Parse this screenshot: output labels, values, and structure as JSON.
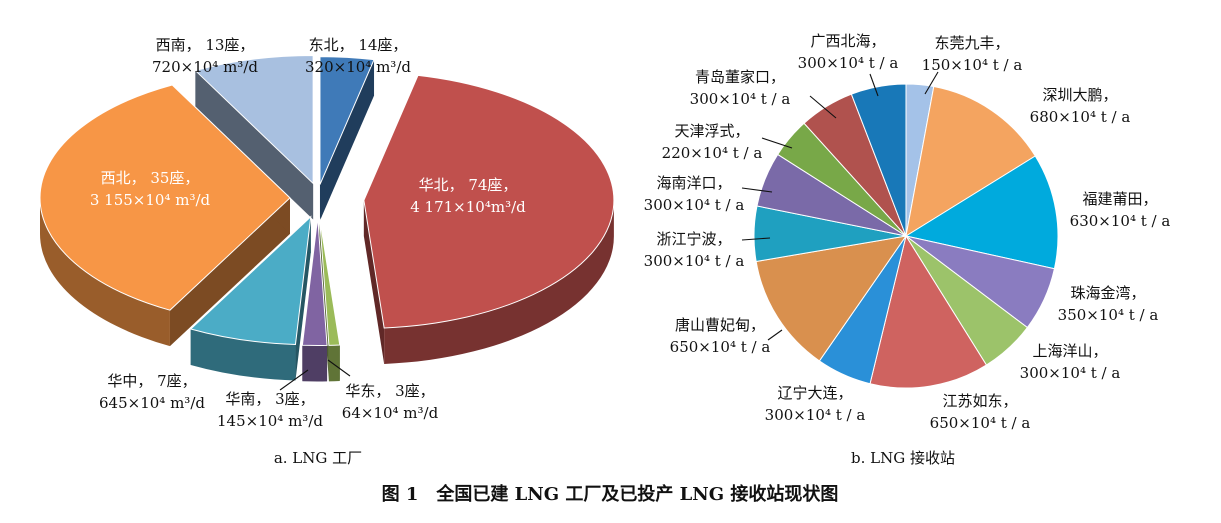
{
  "figure": {
    "caption": "图 1　全国已建 LNG 工厂及已投产 LNG 接收站现状图",
    "sub_a": "a. LNG 工厂",
    "sub_b": "b. LNG 接收站"
  },
  "chart_data": [
    {
      "type": "pie",
      "subtitle": "a. LNG 工厂",
      "slices": [
        {
          "region": "东北",
          "plants": 14,
          "label_1": "东北，  14座，",
          "label_2": "320×10⁴ m³/d",
          "capacity": 320,
          "color": "#3f7ab8"
        },
        {
          "region": "华北",
          "plants": 74,
          "label_1": "华北， 74座，",
          "label_2": "4 171×10⁴m³/d",
          "capacity": 4171,
          "color": "#c0504d"
        },
        {
          "region": "华东",
          "plants": 3,
          "label_1": "华东，  3座，",
          "label_2": "64×10⁴ m³/d",
          "capacity": 64,
          "color": "#9bbb59"
        },
        {
          "region": "华南",
          "plants": 3,
          "label_1": "华南，  3座，",
          "label_2": "145×10⁴ m³/d",
          "capacity": 145,
          "color": "#8064a2"
        },
        {
          "region": "华中",
          "plants": 7,
          "label_1": "华中，  7座，",
          "label_2": "645×10⁴ m³/d",
          "capacity": 645,
          "color": "#4bacc6"
        },
        {
          "region": "西北",
          "plants": 35,
          "label_1": "西北，  35座，",
          "label_2": "3 155×10⁴ m³/d",
          "capacity": 3155,
          "color": "#f79646"
        },
        {
          "region": "西南",
          "plants": 13,
          "label_1": "西南，  13座，",
          "label_2": "720×10⁴ m³/d",
          "capacity": 720,
          "color": "#a8c0e0"
        }
      ]
    },
    {
      "type": "pie",
      "subtitle": "b. LNG 接收站",
      "slices": [
        {
          "name": "东莞九丰",
          "label_1": "东莞九丰，",
          "label_2": "150×10⁴ t / a",
          "capacity": 150,
          "color": "#a4c2e8"
        },
        {
          "name": "深圳大鹏",
          "label_1": "深圳大鹏，",
          "label_2": "680×10⁴ t / a",
          "capacity": 680,
          "color": "#f4a460"
        },
        {
          "name": "福建莆田",
          "label_1": "福建莆田，",
          "label_2": "630×10⁴ t / a",
          "capacity": 630,
          "color": "#00aadd"
        },
        {
          "name": "珠海金湾",
          "label_1": "珠海金湾，",
          "label_2": "350×10⁴ t / a",
          "capacity": 350,
          "color": "#8a7cc0"
        },
        {
          "name": "上海洋山",
          "label_1": "上海洋山，",
          "label_2": "300×10⁴ t / a",
          "capacity": 300,
          "color": "#9cc36a"
        },
        {
          "name": "江苏如东",
          "label_1": "江苏如东，",
          "label_2": "650×10⁴ t / a",
          "capacity": 650,
          "color": "#cf6360"
        },
        {
          "name": "辽宁大连",
          "label_1": "辽宁大连，",
          "label_2": "300×10⁴ t / a",
          "capacity": 300,
          "color": "#2a90d8"
        },
        {
          "name": "唐山曹妃甸",
          "label_1": "唐山曹妃甸，",
          "label_2": "650×10⁴ t / a",
          "capacity": 650,
          "color": "#d9904e"
        },
        {
          "name": "浙江宁波",
          "label_1": "浙江宁波，",
          "label_2": "300×10⁴ t / a",
          "capacity": 300,
          "color": "#1fa0c0"
        },
        {
          "name": "海南洋口",
          "label_1": "海南洋口，",
          "label_2": "300×10⁴ t / a",
          "capacity": 300,
          "color": "#7a6aa8"
        },
        {
          "name": "天津浮式",
          "label_1": "天津浮式，",
          "label_2": "220×10⁴ t / a",
          "capacity": 220,
          "color": "#78a848"
        },
        {
          "name": "青岛董家口",
          "label_1": "青岛董家口，",
          "label_2": "300×10⁴ t / a",
          "capacity": 300,
          "color": "#b0524e"
        },
        {
          "name": "广西北海",
          "label_1": "广西北海，",
          "label_2": "300×10⁴ t / a",
          "capacity": 300,
          "color": "#1878b8"
        }
      ]
    }
  ]
}
